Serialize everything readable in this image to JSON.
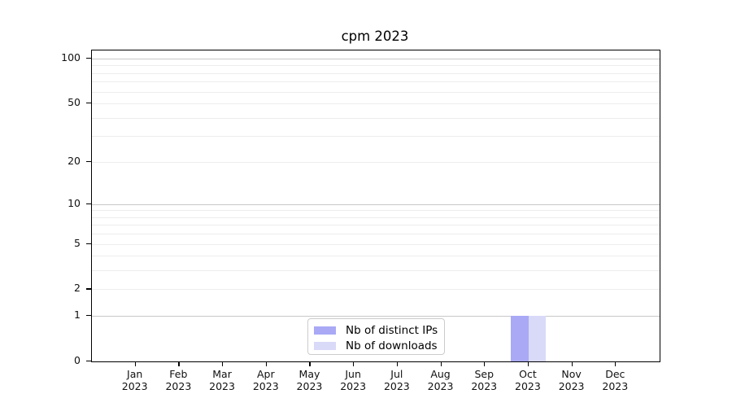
{
  "chart_data": {
    "type": "bar",
    "title": "cpm 2023",
    "x": [
      "Jan",
      "Feb",
      "Mar",
      "Apr",
      "May",
      "Jun",
      "Jul",
      "Aug",
      "Sep",
      "Oct",
      "Nov",
      "Dec"
    ],
    "x_year": "2023",
    "series": [
      {
        "name": "Nb of distinct IPs",
        "color": "#a9a9f6",
        "values": [
          0,
          0,
          0,
          0,
          0,
          0,
          0,
          0,
          0,
          1,
          0,
          0
        ]
      },
      {
        "name": "Nb of downloads",
        "color": "#d9d9f8",
        "values": [
          0,
          0,
          0,
          0,
          0,
          0,
          0,
          0,
          0,
          1,
          0,
          0
        ]
      }
    ],
    "y_ticks": [
      0,
      1,
      2,
      5,
      10,
      20,
      50,
      100
    ],
    "y_major_gridlines": [
      1,
      10,
      100
    ],
    "y_minor_gridlines": [
      2,
      3,
      4,
      5,
      6,
      7,
      8,
      9,
      20,
      30,
      40,
      50,
      60,
      70,
      80,
      90
    ],
    "ylim": [
      0,
      100
    ],
    "yscale": "log1p (y position proportional to log10(1+v))",
    "grid": "horizontal only",
    "legend_position": "lower center, inside plot"
  },
  "colors": {
    "bar_distinct_ips": "#a9a9f6",
    "bar_downloads": "#d9d9f8",
    "major_grid": "#c8c8c8",
    "minor_grid": "#ededed",
    "spine": "#000000",
    "legend_border": "#cccccc",
    "background": "#ffffff"
  }
}
